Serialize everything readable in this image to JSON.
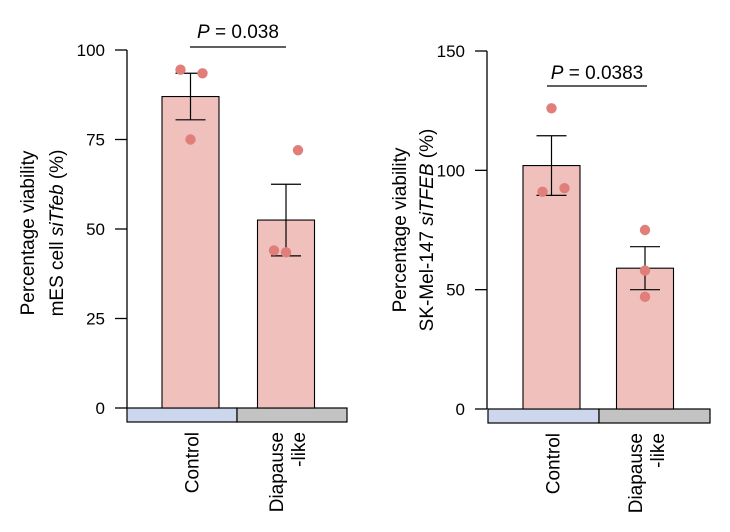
{
  "chart_data": [
    {
      "type": "bar",
      "categories": [
        "Control",
        "Diapause\n-like"
      ],
      "values": [
        87,
        52.5
      ],
      "errors": [
        6.5,
        10
      ],
      "points": [
        [
          94.5,
          93.5,
          75
        ],
        [
          72,
          44,
          43.5
        ]
      ],
      "ylabel_line1": "Percentage viability",
      "ylabel_line2_prefix": "mES cell ",
      "ylabel_line2_italic": "siTfeb",
      "ylabel_line2_suffix": " (%)",
      "ylim": [
        0,
        100
      ],
      "yticks": [
        0,
        25,
        50,
        75,
        100
      ],
      "pvalue_prefix": "P",
      "pvalue_text": " = 0.038"
    },
    {
      "type": "bar",
      "categories": [
        "Control",
        "Diapause\n-like"
      ],
      "values": [
        102,
        59
      ],
      "errors": [
        12.5,
        9
      ],
      "points": [
        [
          126,
          92.5,
          91
        ],
        [
          75,
          58,
          47
        ]
      ],
      "ylabel_line1": "Percentage viability",
      "ylabel_line2_prefix": "SK-Mel-147 ",
      "ylabel_line2_italic": "siTFEB",
      "ylabel_line2_suffix": " (%)",
      "ylim": [
        0,
        150
      ],
      "yticks": [
        0,
        50,
        100,
        150
      ],
      "pvalue_prefix": "P",
      "pvalue_text": " = 0.0383"
    }
  ],
  "colors": {
    "bar_fill": "#f0c0bc",
    "point": "#e07f7a",
    "control_strip": "#ccd7ee",
    "diapause_strip": "#c3c3c3",
    "axis": "#000000"
  }
}
